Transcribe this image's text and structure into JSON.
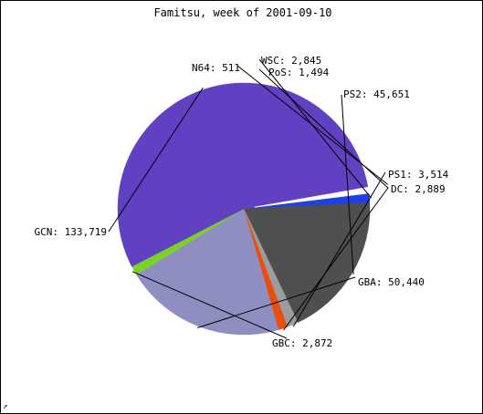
{
  "chart_data": {
    "type": "pie",
    "title": "Famitsu, week of 2001-09-10",
    "slices": [
      {
        "label": "WSC",
        "value": 2845,
        "value_text": "2,845",
        "color": "#1f3fe8"
      },
      {
        "label": "PS2",
        "value": 45651,
        "value_text": "45,651",
        "color": "#4f4f4f"
      },
      {
        "label": "PS1",
        "value": 3514,
        "value_text": "3,514",
        "color": "#9c9c9c"
      },
      {
        "label": "DC",
        "value": 2889,
        "value_text": "2,889",
        "color": "#ea4d10"
      },
      {
        "label": "GBA",
        "value": 50440,
        "value_text": "50,440",
        "color": "#8e8fc0"
      },
      {
        "label": "GBC",
        "value": 2872,
        "value_text": "2,872",
        "color": "#7bd12c"
      },
      {
        "label": "GCN",
        "value": 133719,
        "value_text": "133,719",
        "color": "#6140c2"
      },
      {
        "label": "N64",
        "value": 511,
        "value_text": "511",
        "color": "#ffffff"
      },
      {
        "label": "PoS",
        "value": 1494,
        "value_text": "1,494",
        "color": "#ffffff"
      }
    ],
    "legend": "none"
  },
  "icons": {
    "corner_logo": "logo-icon"
  }
}
